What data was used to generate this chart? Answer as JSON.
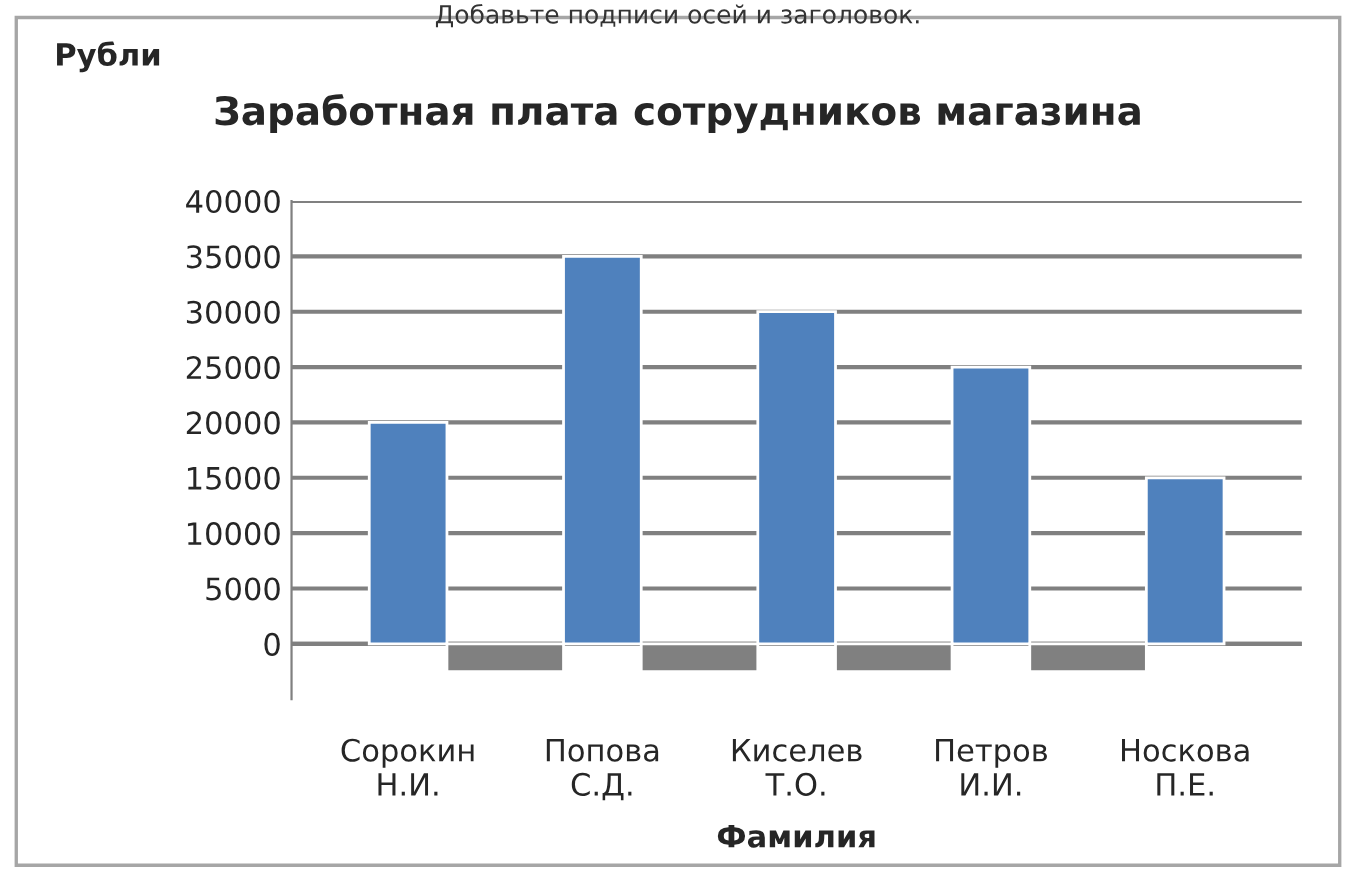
{
  "chart_data": {
    "type": "bar",
    "title": "Заработная плата сотрудников магазина",
    "ylabel": "Рубли",
    "xlabel": "Фамилия",
    "annotations": [
      "Добавьте подписи осей и заголовок."
    ],
    "categories": [
      "Сорокин\nН.И.",
      "Попова\nС.Д.",
      "Киселев\nТ.О.",
      "Петров\nИ.И.",
      "Носкова\nП.Е."
    ],
    "series": [
      {
        "color": "#4f81bd",
        "values": [
          20000,
          35000,
          30000,
          25000,
          15000
        ]
      },
      {
        "color": "#808080",
        "values": [
          -2500,
          -2500,
          -2500,
          -2500,
          null
        ]
      }
    ],
    "ylim": [
      -5000,
      40000
    ],
    "yticks": [
      0,
      5000,
      10000,
      15000,
      20000,
      25000,
      30000,
      35000,
      40000
    ],
    "grid": "y",
    "legend": false
  }
}
